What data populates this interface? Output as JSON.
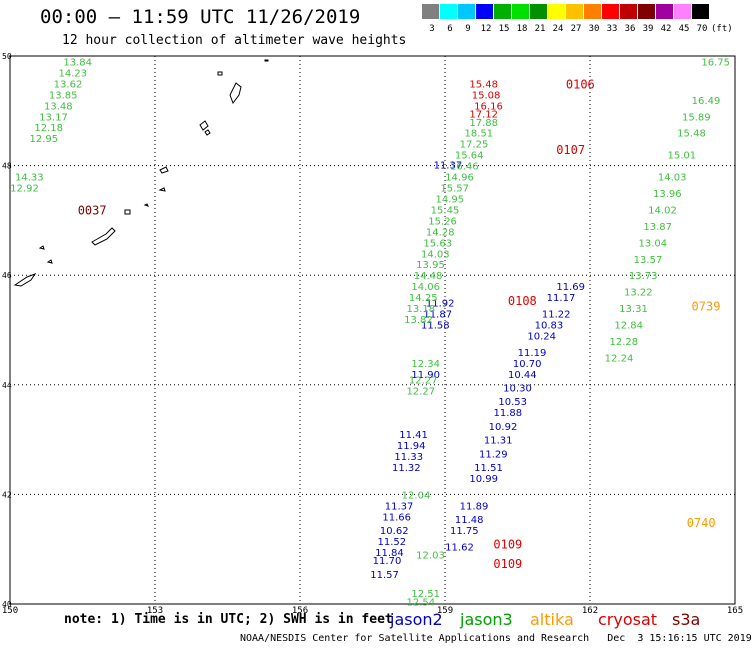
{
  "title": "00:00 – 11:59 UTC 11/26/2019",
  "subtitle": "12 hour collection of altimeter wave heights",
  "scale": {
    "colors": [
      "#808080",
      "#00ffff",
      "#00c8ff",
      "#0000ff",
      "#00b000",
      "#00e000",
      "#009000",
      "#ffff00",
      "#ffc000",
      "#ff8000",
      "#ff0000",
      "#c00000",
      "#800000",
      "#a000a0",
      "#ff80ff",
      "#000000"
    ],
    "labels": [
      "3",
      "6",
      "9",
      "12",
      "15",
      "18",
      "21",
      "24",
      "27",
      "30",
      "33",
      "36",
      "39",
      "42",
      "45",
      "70",
      "(ft)"
    ]
  },
  "axes": {
    "lon_ticks": [
      "150",
      "153",
      "156",
      "159",
      "162",
      "165"
    ],
    "lat_ticks": [
      "50",
      "48",
      "46",
      "44",
      "42",
      "40"
    ]
  },
  "chart_data": {
    "type": "scatter",
    "xlim": [
      150,
      165
    ],
    "ylim": [
      40,
      50
    ],
    "series": [
      {
        "name": "jason2",
        "color": "#0000cc",
        "points": [
          [
            159.06,
            48.02,
            "11.37"
          ],
          [
            158.9,
            45.5,
            "11.92"
          ],
          [
            158.85,
            45.3,
            "11.87"
          ],
          [
            158.8,
            45.1,
            "11.58"
          ],
          [
            158.6,
            44.2,
            "11.90"
          ],
          [
            158.35,
            43.1,
            "11.41"
          ],
          [
            158.3,
            42.9,
            "11.94"
          ],
          [
            158.25,
            42.7,
            "11.33"
          ],
          [
            158.2,
            42.5,
            "11.32"
          ],
          [
            158.05,
            41.8,
            "11.37"
          ],
          [
            158.0,
            41.6,
            "11.66"
          ],
          [
            157.95,
            41.35,
            "10.62"
          ],
          [
            157.9,
            41.15,
            "11.52"
          ],
          [
            157.85,
            40.95,
            "11.84"
          ],
          [
            157.8,
            40.8,
            "11.70"
          ],
          [
            157.75,
            40.55,
            "11.57"
          ],
          [
            161.6,
            45.8,
            "11.69"
          ],
          [
            161.4,
            45.6,
            "11.17"
          ],
          [
            161.3,
            45.3,
            "11.22"
          ],
          [
            161.15,
            45.1,
            "10.83"
          ],
          [
            161.0,
            44.9,
            "10.24"
          ],
          [
            160.8,
            44.6,
            "11.19"
          ],
          [
            160.7,
            44.4,
            "10.70"
          ],
          [
            160.6,
            44.2,
            "10.44"
          ],
          [
            160.5,
            43.95,
            "10.30"
          ],
          [
            160.4,
            43.7,
            "10.53"
          ],
          [
            160.3,
            43.5,
            "11.88"
          ],
          [
            160.2,
            43.25,
            "10.92"
          ],
          [
            160.1,
            43.0,
            "11.31"
          ],
          [
            160.0,
            42.75,
            "11.29"
          ],
          [
            159.9,
            42.5,
            "11.51"
          ],
          [
            159.8,
            42.3,
            "10.99"
          ],
          [
            159.6,
            41.8,
            "11.89"
          ],
          [
            159.5,
            41.55,
            "11.48"
          ],
          [
            159.4,
            41.35,
            "11.75"
          ],
          [
            159.3,
            41.05,
            "11.62"
          ]
        ]
      },
      {
        "name": "jason3",
        "color": "#40c040",
        "points": [
          [
            151.4,
            49.9,
            "13.84"
          ],
          [
            151.3,
            49.7,
            "14.23"
          ],
          [
            151.2,
            49.5,
            "13.62"
          ],
          [
            151.1,
            49.3,
            "13.85"
          ],
          [
            151.0,
            49.1,
            "13.48"
          ],
          [
            150.9,
            48.9,
            "13.17"
          ],
          [
            150.8,
            48.7,
            "12.18"
          ],
          [
            150.7,
            48.5,
            "12.95"
          ],
          [
            150.4,
            47.8,
            "14.33"
          ],
          [
            150.3,
            47.6,
            "12.92"
          ],
          [
            159.8,
            48.8,
            "17.88"
          ],
          [
            159.7,
            48.6,
            "18.51"
          ],
          [
            159.6,
            48.4,
            "17.25"
          ],
          [
            159.5,
            48.2,
            "15.64"
          ],
          [
            159.4,
            48.0,
            "16.46"
          ],
          [
            159.3,
            47.8,
            "14.96"
          ],
          [
            159.2,
            47.6,
            "15.57"
          ],
          [
            159.1,
            47.4,
            "14.95"
          ],
          [
            159.0,
            47.2,
            "15.45"
          ],
          [
            158.95,
            47.0,
            "15.26"
          ],
          [
            158.9,
            46.8,
            "14.28"
          ],
          [
            158.85,
            46.6,
            "15.63"
          ],
          [
            158.8,
            46.4,
            "14.03"
          ],
          [
            158.7,
            46.2,
            "13.95"
          ],
          [
            158.65,
            46.0,
            "14.48"
          ],
          [
            158.6,
            45.8,
            "14.06"
          ],
          [
            158.55,
            45.6,
            "14.25"
          ],
          [
            158.5,
            45.4,
            "13.18"
          ],
          [
            158.45,
            45.2,
            "13.82"
          ],
          [
            158.6,
            44.4,
            "12.34"
          ],
          [
            158.55,
            44.1,
            "12.27"
          ],
          [
            158.5,
            43.9,
            "12.27"
          ],
          [
            158.4,
            42.0,
            "12.04"
          ],
          [
            158.7,
            40.9,
            "12.03"
          ],
          [
            158.6,
            40.2,
            "12.51"
          ],
          [
            158.5,
            40.05,
            "12.54"
          ],
          [
            164.6,
            49.9,
            "16.75"
          ],
          [
            164.4,
            49.2,
            "16.49"
          ],
          [
            164.2,
            48.9,
            "15.89"
          ],
          [
            164.1,
            48.6,
            "15.48"
          ],
          [
            163.9,
            48.2,
            "15.01"
          ],
          [
            163.7,
            47.8,
            "14.03"
          ],
          [
            163.6,
            47.5,
            "13.96"
          ],
          [
            163.5,
            47.2,
            "14.02"
          ],
          [
            163.4,
            46.9,
            "13.87"
          ],
          [
            163.3,
            46.6,
            "13.04"
          ],
          [
            163.2,
            46.3,
            "13.57"
          ],
          [
            163.1,
            46.0,
            "13.73"
          ],
          [
            163.0,
            45.7,
            "13.22"
          ],
          [
            162.9,
            45.4,
            "13.31"
          ],
          [
            162.8,
            45.1,
            "12.84"
          ],
          [
            162.7,
            44.8,
            "12.28"
          ],
          [
            162.6,
            44.5,
            "12.24"
          ]
        ]
      },
      {
        "name": "altika",
        "color": "#ff9900",
        "points": []
      },
      {
        "name": "cryosat",
        "color": "#dd0000",
        "points": [
          [
            159.8,
            49.5,
            "15.48"
          ],
          [
            159.85,
            49.3,
            "15.08"
          ],
          [
            159.9,
            49.1,
            "16.16"
          ],
          [
            159.8,
            48.95,
            "17.12"
          ]
        ]
      },
      {
        "name": "s3a",
        "color": "#800000",
        "points": []
      }
    ],
    "labels": [
      {
        "text": "0106",
        "color": "#dd0000",
        "x": 161.8,
        "y": 49.5
      },
      {
        "text": "0107",
        "color": "#dd0000",
        "x": 161.6,
        "y": 48.3
      },
      {
        "text": "0037",
        "color": "#800000",
        "x": 151.7,
        "y": 47.2
      },
      {
        "text": "0108",
        "color": "#dd0000",
        "x": 160.6,
        "y": 45.55
      },
      {
        "text": "0739",
        "color": "#ff9900",
        "x": 164.4,
        "y": 45.45
      },
      {
        "text": "0740",
        "color": "#ff9900",
        "x": 164.3,
        "y": 41.5
      },
      {
        "text": "0109",
        "color": "#dd0000",
        "x": 160.3,
        "y": 41.1
      },
      {
        "text": "0109",
        "color": "#dd0000",
        "x": 160.3,
        "y": 40.75
      }
    ]
  },
  "legend": [
    {
      "name": "jason2",
      "color": "#0000cc"
    },
    {
      "name": "jason3",
      "color": "#00a000"
    },
    {
      "name": "altika",
      "color": "#ff9900"
    },
    {
      "name": "cryosat",
      "color": "#dd0000"
    },
    {
      "name": "s3a",
      "color": "#800000"
    }
  ],
  "note": "note: 1) Time is in UTC; 2) SWH is in feet",
  "footer": "NOAA/NESDIS Center for Satellite Applications and Research   Dec  3 15:16:15 UTC 2019"
}
